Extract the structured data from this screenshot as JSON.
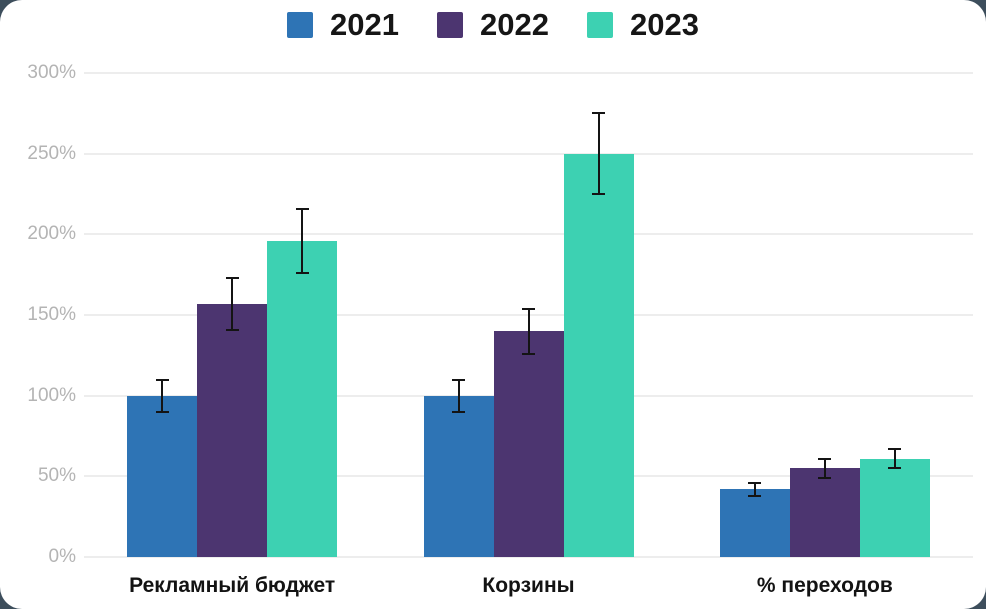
{
  "page": {
    "background_color": "#3d4e5c",
    "card_background_color": "#ffffff"
  },
  "axis_style": {
    "grid_color": "#ededed",
    "tick_label_color": "#b4b4b4",
    "category_label_color": "#131313",
    "error_bar_color": "#141414"
  },
  "chart_data": {
    "type": "bar",
    "title": "",
    "xlabel": "",
    "ylabel": "",
    "categories": [
      "Рекламный бюджет",
      "Корзины",
      "% переходов"
    ],
    "series": [
      {
        "name": "2021",
        "color": "#2e74b5",
        "values": [
          100,
          100,
          42
        ],
        "errors": [
          10,
          10,
          4
        ]
      },
      {
        "name": "2022",
        "color": "#4c3570",
        "values": [
          157,
          140,
          55
        ],
        "errors": [
          16,
          14,
          6
        ]
      },
      {
        "name": "2023",
        "color": "#3dd1b2",
        "values": [
          196,
          250,
          61
        ],
        "errors": [
          20,
          25,
          6
        ]
      }
    ],
    "error_bars": true,
    "grid": true,
    "legend_position": "top-center",
    "ylim": [
      0,
      300
    ],
    "yticks": [
      {
        "value": 0,
        "label": "0%"
      },
      {
        "value": 50,
        "label": "50%"
      },
      {
        "value": 100,
        "label": "100%"
      },
      {
        "value": 150,
        "label": "150%"
      },
      {
        "value": 200,
        "label": "200%"
      },
      {
        "value": 250,
        "label": "250%"
      },
      {
        "value": 300,
        "label": "300%"
      }
    ]
  }
}
